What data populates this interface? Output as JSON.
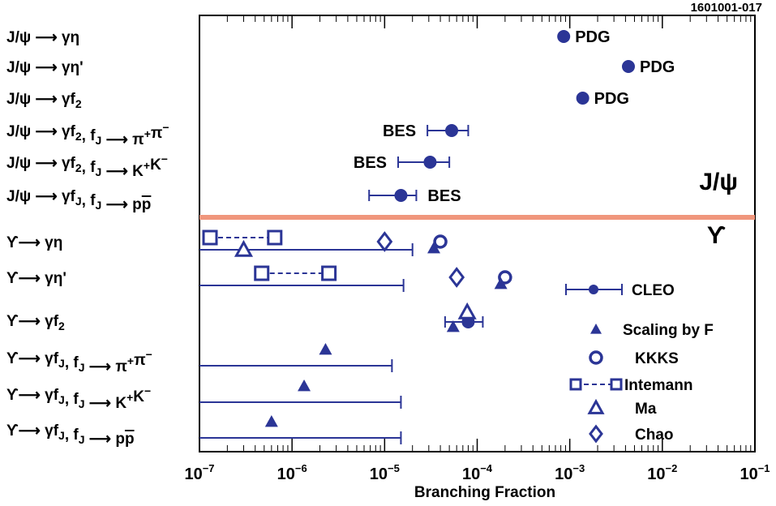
{
  "figure_id": "1601001-017",
  "chart_data": {
    "type": "scatter",
    "xscale": "log",
    "xlim": [
      1e-07,
      0.1
    ],
    "xlabel": "Branching Fraction",
    "x_tick_labels": [
      {
        "base": "10",
        "exp": "−7"
      },
      {
        "base": "10",
        "exp": "−6"
      },
      {
        "base": "10",
        "exp": "−5"
      },
      {
        "base": "10",
        "exp": "−4"
      },
      {
        "base": "10",
        "exp": "−3"
      },
      {
        "base": "10",
        "exp": "−2"
      },
      {
        "base": "10",
        "exp": "−1"
      }
    ],
    "section_labels": {
      "jpsi": "J/ψ",
      "upsilon": "ϒ"
    },
    "rows": [
      {
        "label": "J/ψ → γη"
      },
      {
        "label": "J/ψ → γη'"
      },
      {
        "label": "J/ψ → γf2"
      },
      {
        "label": "J/ψ → γf2, fJ → π+π−"
      },
      {
        "label": "J/ψ → γf2, fJ → K+K−"
      },
      {
        "label": "J/ψ → γfJ, fJ → pp̄"
      },
      {
        "label": "ϒ → γη"
      },
      {
        "label": "ϒ → γη'"
      },
      {
        "label": "ϒ → γf2"
      },
      {
        "label": "ϒ → γfJ, fJ → π+π−"
      },
      {
        "label": "ϒ → γfJ, fJ → K+K−"
      },
      {
        "label": "ϒ → γfJ, fJ → pp̄"
      }
    ],
    "jpsi_measurements": [
      {
        "row": 0,
        "value": 0.00086,
        "source": "PDG"
      },
      {
        "row": 1,
        "value": 0.0043,
        "source": "PDG"
      },
      {
        "row": 2,
        "value": 0.00138,
        "source": "PDG"
      },
      {
        "row": 3,
        "value": 5.3e-05,
        "low": 2.9e-05,
        "high": 8e-05,
        "source": "BES"
      },
      {
        "row": 4,
        "value": 3.1e-05,
        "low": 1.4e-05,
        "high": 5e-05,
        "source": "BES"
      },
      {
        "row": 5,
        "value": 1.5e-05,
        "low": 6.8e-06,
        "high": 2.2e-05,
        "source": "BES"
      }
    ],
    "upsilon_limits": [
      {
        "row": 6,
        "upper_limit": 2e-05
      },
      {
        "row": 7,
        "upper_limit": 1.6e-05
      },
      {
        "row": 9,
        "upper_limit": 1.2e-05
      },
      {
        "row": 10,
        "upper_limit": 1.5e-05
      },
      {
        "row": 11,
        "upper_limit": 1.5e-05
      }
    ],
    "upsilon_cleo_points": [
      {
        "row": 8,
        "value": 8e-05,
        "low": 4.5e-05,
        "high": 0.000115
      }
    ],
    "predictions": {
      "scaling_by_f": [
        {
          "row": 6,
          "value": 3.4e-05
        },
        {
          "row": 7,
          "value": 0.00018
        },
        {
          "row": 8,
          "value": 5.5e-05
        },
        {
          "row": 9,
          "value": 2.3e-06
        },
        {
          "row": 10,
          "value": 1.35e-06
        },
        {
          "row": 11,
          "value": 6e-07
        }
      ],
      "kkks": [
        {
          "row": 6,
          "value": 4e-05
        },
        {
          "row": 7,
          "value": 0.0002
        }
      ],
      "intemann": [
        {
          "row": 6,
          "low": 1.3e-07,
          "high": 6.5e-07
        },
        {
          "row": 7,
          "low": 4.7e-07,
          "high": 2.5e-06
        }
      ],
      "ma": [
        {
          "row": 6,
          "value": 3e-07
        },
        {
          "row": 8,
          "value": 7.8e-05
        }
      ],
      "chao": [
        {
          "row": 6,
          "value": 1e-05
        },
        {
          "row": 7,
          "value": 6e-05
        }
      ]
    },
    "legend": {
      "position": "bottom-right",
      "entries": [
        {
          "key": "cleo",
          "label": "CLEO"
        },
        {
          "key": "scaling_by_f",
          "label": "Scaling by F"
        },
        {
          "key": "kkks",
          "label": "KKKS"
        },
        {
          "key": "intemann",
          "label": "Intemann"
        },
        {
          "key": "ma",
          "label": "Ma"
        },
        {
          "key": "chao",
          "label": "Chao"
        }
      ]
    },
    "colors": {
      "marker": "#2b3596",
      "separator": "#f0967c",
      "axis": "#000000"
    }
  }
}
